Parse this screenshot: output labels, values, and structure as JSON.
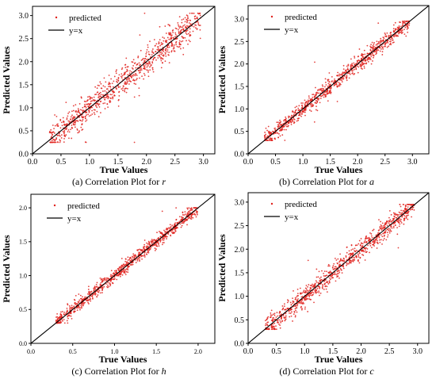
{
  "colors": {
    "point": "#e0201b",
    "line": "#000000",
    "axis": "#000000"
  },
  "chart_data": [
    {
      "type": "scatter",
      "caption_prefix": "(a) Correlation Plot for ",
      "caption_var": "r",
      "xlabel": "True Values",
      "ylabel": "Predicted Values",
      "xlim": [
        0,
        3.2
      ],
      "ylim": [
        0,
        3.2
      ],
      "xticks": [
        "0.0",
        "0.5",
        "1.0",
        "1.5",
        "2.0",
        "2.5",
        "3.0"
      ],
      "yticks": [
        "0.0",
        "0.5",
        "1.0",
        "1.5",
        "2.0",
        "2.5",
        "3.0"
      ],
      "legend": [
        "predicted",
        "y=x"
      ],
      "legend_position": "top-left",
      "x_range": [
        0.3,
        2.95
      ],
      "y_range": [
        0.25,
        3.05
      ],
      "series": [
        {
          "name": "predicted",
          "relation": "y≈x",
          "spread": 0.16
        }
      ]
    },
    {
      "type": "scatter",
      "caption_prefix": "(b) Correlation Plot for ",
      "caption_var": "a",
      "xlabel": "True Values",
      "ylabel": "Predicted Values",
      "xlim": [
        0,
        3.3
      ],
      "ylim": [
        0,
        3.3
      ],
      "xticks": [
        "0.0",
        "0.5",
        "1.0",
        "1.5",
        "2.0",
        "2.5",
        "3.0"
      ],
      "yticks": [
        "0.0",
        "0.5",
        "1.0",
        "1.5",
        "2.0",
        "2.5",
        "3.0"
      ],
      "legend": [
        "predicted",
        "y=x"
      ],
      "legend_position": "top-left",
      "x_range": [
        0.3,
        2.95
      ],
      "y_range": [
        0.3,
        2.95
      ],
      "series": [
        {
          "name": "predicted",
          "relation": "y≈x",
          "spread": 0.09
        }
      ]
    },
    {
      "type": "scatter",
      "caption_prefix": "(c) Correlation Plot for ",
      "caption_var": "h",
      "xlabel": "True Values",
      "ylabel": "Predicted Values",
      "xlim": [
        0,
        2.2
      ],
      "ylim": [
        0,
        2.2
      ],
      "xticks": [
        "0.0",
        "0.5",
        "1.0",
        "1.5",
        "2.0"
      ],
      "yticks": [
        "0.0",
        "0.5",
        "1.0",
        "1.5",
        "2.0"
      ],
      "legend": [
        "predicted",
        "y=x"
      ],
      "legend_position": "top-left",
      "x_range": [
        0.3,
        2.0
      ],
      "y_range": [
        0.3,
        2.0
      ],
      "series": [
        {
          "name": "predicted",
          "relation": "y≈x",
          "spread": 0.05
        }
      ]
    },
    {
      "type": "scatter",
      "caption_prefix": "(d) Correlation Plot for ",
      "caption_var": "c",
      "xlabel": "True Values",
      "ylabel": "Predicted Values",
      "xlim": [
        0,
        3.2
      ],
      "ylim": [
        0,
        3.2
      ],
      "xticks": [
        "0.0",
        "0.5",
        "1.0",
        "1.5",
        "2.0",
        "2.5",
        "3.0"
      ],
      "yticks": [
        "0.0",
        "0.5",
        "1.0",
        "1.5",
        "2.0",
        "2.5",
        "3.0"
      ],
      "legend": [
        "predicted",
        "y=x"
      ],
      "legend_position": "top-left",
      "x_range": [
        0.3,
        2.95
      ],
      "y_range": [
        0.3,
        2.95
      ],
      "series": [
        {
          "name": "predicted",
          "relation": "y≈x",
          "spread": 0.11
        }
      ]
    }
  ]
}
